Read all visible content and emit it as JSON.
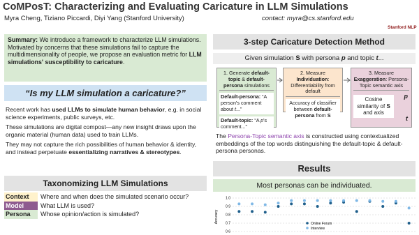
{
  "header": {
    "title": "CoMPosT: Characterizing and Evaluating Caricature in LLM Simulations",
    "authors": "Myra Cheng, Tiziano Piccardi, Diyi Yang (Stanford University)",
    "contact": "contact: myra@cs.stanford.edu",
    "logo": "Stanford NLP"
  },
  "summary": [
    "Summary:",
    " We introduce a framework to characterize LLM simulations. Motivated by concerns that these simulations fail to capture the multidimensionality of people, we propose an evaluation metric for ",
    "LLM simulations' susceptibility to caricature",
    "."
  ],
  "question": "“Is my LLM simulation a caricature?”",
  "paragraphs": [
    [
      "Recent work has ",
      "used LLMs to simulate human behavior",
      ", e.g. in social science experiments, public surveys, etc."
    ],
    [
      "These simulations are digital compost—any new insight draws upon the organic material (human data) used to train LLMs."
    ],
    [
      "They may not capture the rich possibilities of human behavior & identity, and instead perpetuate ",
      "essentializing narratives & stereotypes",
      "."
    ]
  ],
  "taxonomy": {
    "title": "Taxonomizing LLM Simulations",
    "rows": [
      [
        "Context",
        "Where and when does the simulated scenario occur?"
      ],
      [
        "Model",
        "What LLM is used?"
      ],
      [
        "Persona",
        "Whose opinion/action is simulated?"
      ]
    ]
  },
  "method": {
    "title": "3-step Caricature Detection Method",
    "given": [
      "Given simulation ",
      "S",
      " with persona ",
      "p",
      " and topic ",
      "t",
      "..."
    ],
    "step1": {
      "title": [
        "1. Generate ",
        "default-topic",
        " & ",
        "default-persona",
        " simulations"
      ],
      "items": [
        [
          "Default-persona:",
          " “A person's comment about ",
          "t",
          "...”"
        ],
        [
          "Default-topic:",
          " “A ",
          "p",
          "'s comment...”"
        ]
      ]
    },
    "step2": {
      "title": [
        "2. Measure ",
        "Individuation",
        ": Differentiability from default"
      ],
      "body": [
        "Accuracy of classifier between ",
        "default-persona",
        " from ",
        "S"
      ]
    },
    "step3": {
      "title": [
        "3. Measure ",
        "Exaggeration",
        ": Persona-Topic semantic axis"
      ],
      "body": [
        "Cosine similarity of ",
        "S",
        " and axis"
      ],
      "p": "p",
      "t": "t"
    },
    "axis": [
      "The ",
      "Persona-Topic semantic axis",
      " is constructed using contextualized embeddings of the top words distinguishing the default-topic & default-persona personas."
    ]
  },
  "results": {
    "title": "Results",
    "finding": "Most personas can be individuated.",
    "chart": {
      "type": "scatter",
      "ylabel": "Accuracy",
      "ylim": [
        0.5,
        1.0
      ],
      "yticks": [
        {
          "value": 1.0,
          "label": "1.0"
        },
        0.9,
        0.8,
        0.7,
        0.6,
        0.5
      ],
      "grid": true,
      "series": [
        {
          "name": "Online Forum",
          "color": "#1f5f8b",
          "values": [
            0.84,
            0.84,
            0.83,
            0.9,
            0.93,
            0.93,
            0.9,
            0.94,
            0.95,
            0.84,
            0.96,
            0.9,
            0.94,
            0.7
          ]
        },
        {
          "name": "Interview",
          "color": "#7fb8e6",
          "values": [
            0.93,
            0.93,
            0.92,
            0.94,
            0.97,
            0.97,
            0.97,
            0.97,
            0.97,
            0.97,
            0.97,
            0.96,
            0.96,
            0.88
          ]
        }
      ]
    }
  }
}
